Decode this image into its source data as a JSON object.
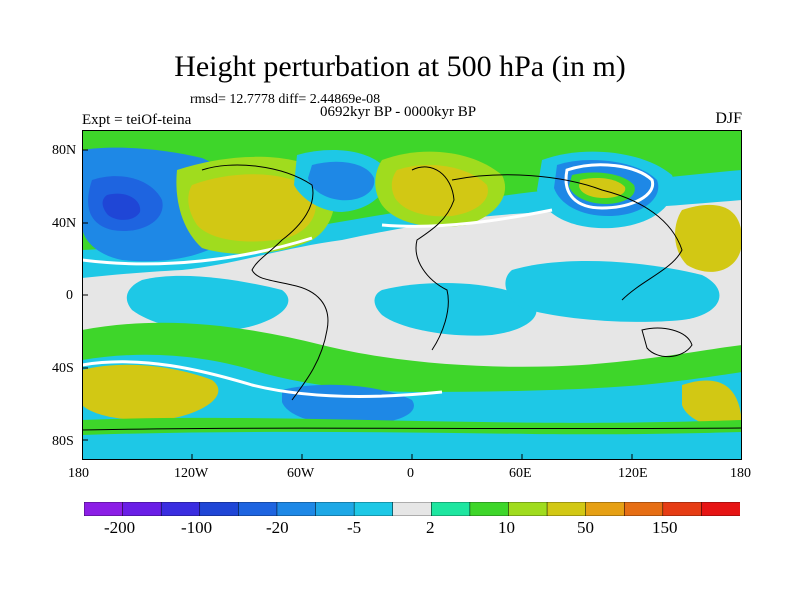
{
  "title": "Height perturbation at 500 hPa (in m)",
  "stats": "rmsd= 12.7778 diff= 2.44869e-08",
  "experiment": "Expt = teiOf-teina",
  "period": "0692kyr BP - 0000kyr BP",
  "season": "DJF",
  "yticks": [
    "80N",
    "40N",
    "0",
    "40S",
    "80S"
  ],
  "xticks": [
    "180",
    "120W",
    "60W",
    "0",
    "60E",
    "120E",
    "180"
  ],
  "colorbar": {
    "colors": [
      "#8c1ee6",
      "#6a1ee6",
      "#3a2de0",
      "#1f46d6",
      "#1e64e0",
      "#1e88e6",
      "#1ea8e6",
      "#1ec8e6",
      "#e6e6e6",
      "#1ee6a0",
      "#3ed62a",
      "#a0dc1e",
      "#d2c814",
      "#e6a014",
      "#e66e14",
      "#e63c14",
      "#e61414"
    ],
    "labels": [
      "-200",
      "-100",
      "-20",
      "-5",
      "2",
      "10",
      "50",
      "150"
    ]
  }
}
